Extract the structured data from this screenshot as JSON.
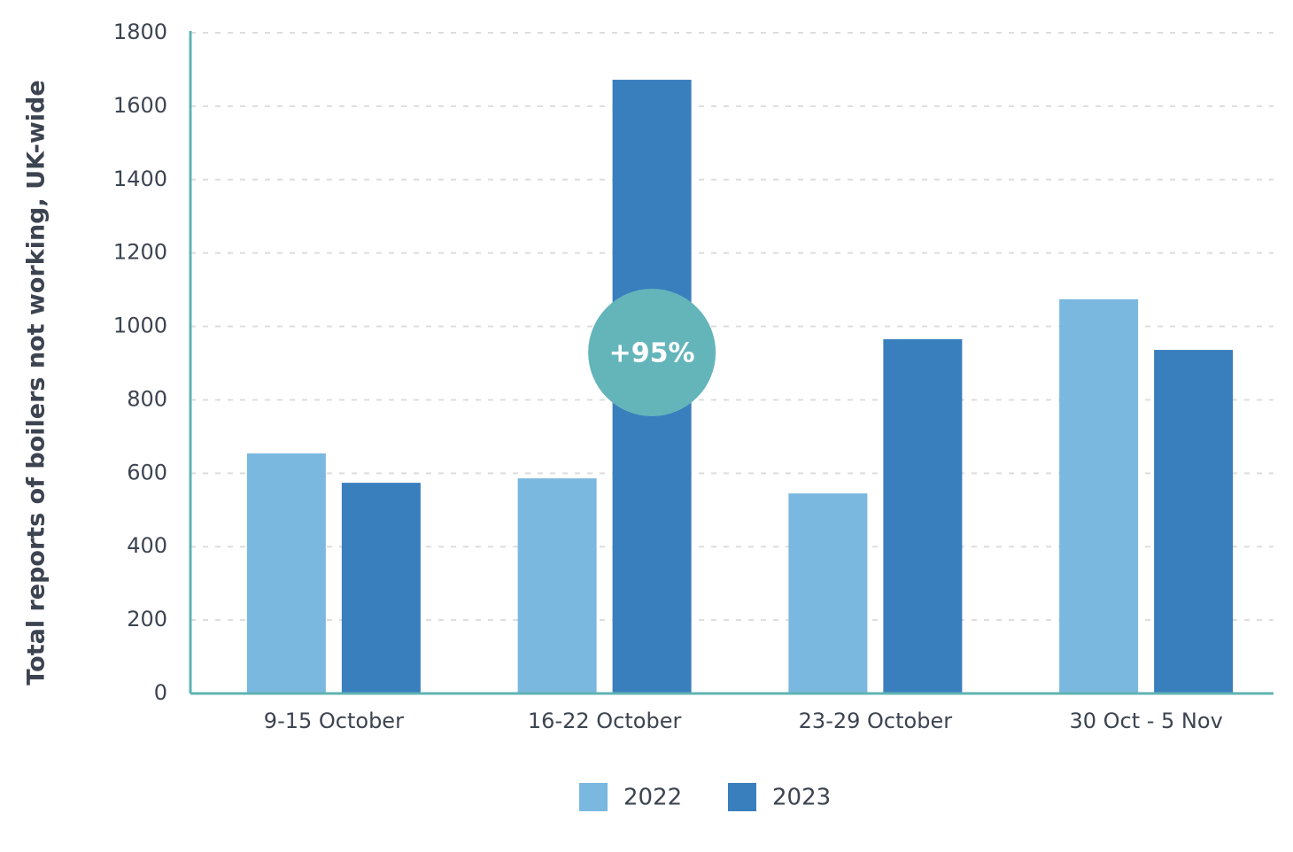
{
  "chart_data": {
    "type": "bar",
    "y_label": "Total reports of boilers not working, UK-wide",
    "categories": [
      "9-15 October",
      "16-22 October",
      "23-29 October",
      "30 Oct - 5 Nov"
    ],
    "series": [
      {
        "name": "2022",
        "color": "#7ab8df",
        "values": [
          654,
          586,
          545,
          1074
        ]
      },
      {
        "name": "2023",
        "color": "#397ebd",
        "values": [
          574,
          1672,
          965,
          936
        ]
      }
    ],
    "annotation": "+95%",
    "ylim": [
      0,
      1800
    ],
    "yticks": [
      0,
      200,
      400,
      600,
      800,
      1000,
      1200,
      1400,
      1600,
      1800
    ],
    "grid": true
  }
}
